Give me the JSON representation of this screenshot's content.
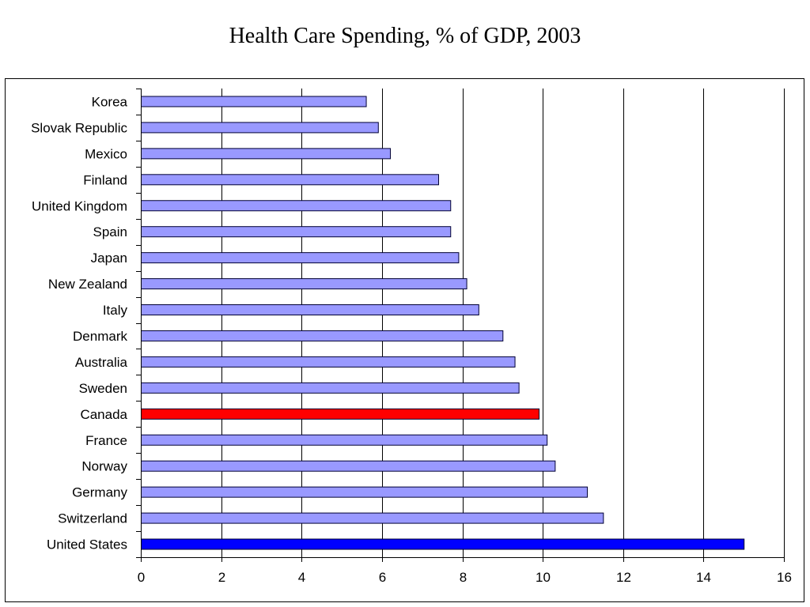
{
  "chart_data": {
    "type": "bar",
    "orientation": "horizontal",
    "title": "Health Care Spending, % of GDP, 2003",
    "xlabel": "",
    "ylabel": "",
    "xlim": [
      0,
      16
    ],
    "xticks": [
      0,
      2,
      4,
      6,
      8,
      10,
      12,
      14,
      16
    ],
    "grid": "vertical",
    "categories": [
      "Korea",
      "Slovak Republic",
      "Mexico",
      "Finland",
      "United Kingdom",
      "Spain",
      "Japan",
      "New Zealand",
      "Italy",
      "Denmark",
      "Australia",
      "Sweden",
      "Canada",
      "France",
      "Norway",
      "Germany",
      "Switzerland",
      "United States"
    ],
    "values": [
      5.6,
      5.9,
      6.2,
      7.4,
      7.7,
      7.7,
      7.9,
      8.1,
      8.4,
      9.0,
      9.3,
      9.4,
      9.9,
      10.1,
      10.3,
      11.1,
      11.5,
      15.0
    ],
    "colors": {
      "default": "#9999ff",
      "Canada": "#ff0000",
      "United States": "#0000ff"
    }
  }
}
